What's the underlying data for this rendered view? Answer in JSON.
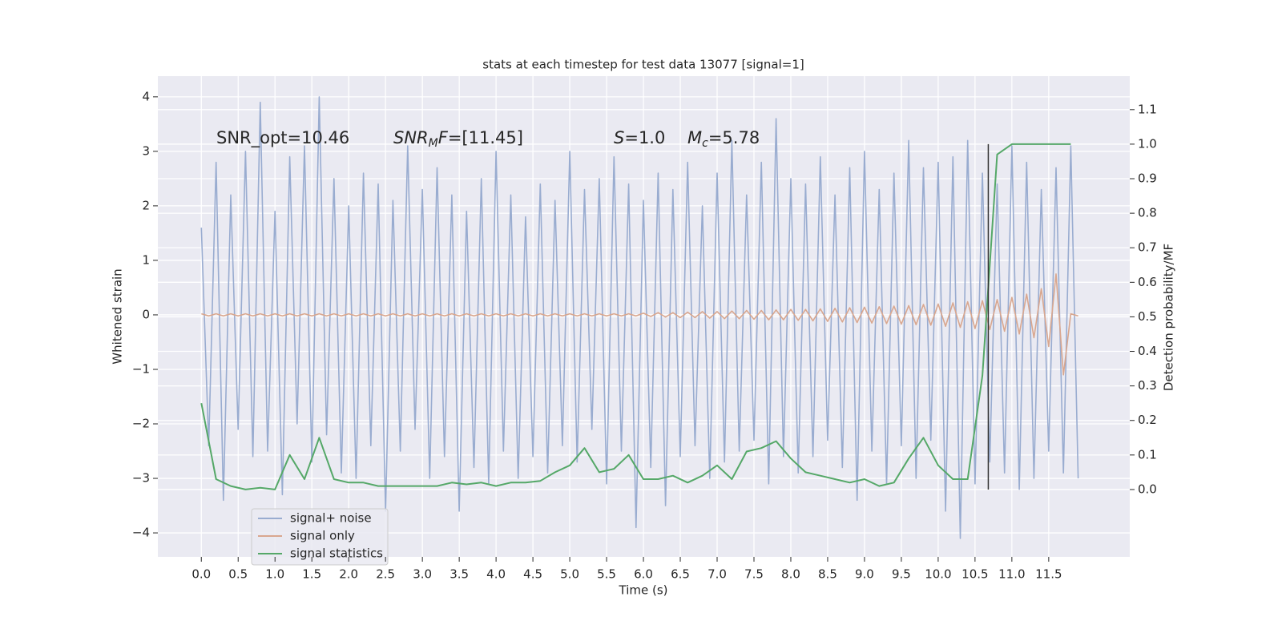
{
  "chart_data": {
    "type": "line",
    "title": "stats at each timestep for test data 13077 [signal=1]",
    "xlabel": "Time (s)",
    "ylabel": "Whitened strain",
    "y2label": "Detection probability/MF",
    "xlim": [
      -0.59,
      12.6
    ],
    "ylim": [
      -4.44,
      4.38
    ],
    "y2lim": [
      -0.195,
      1.197
    ],
    "xticks": [
      {
        "value": 0,
        "label": "0.0"
      },
      0.5,
      {
        "value": 1,
        "label": "1.0"
      },
      1.5,
      {
        "value": 2,
        "label": "2.0"
      },
      2.5,
      {
        "value": 3,
        "label": "3.0"
      },
      3.5,
      {
        "value": 4,
        "label": "4.0"
      },
      4.5,
      {
        "value": 5,
        "label": "5.0"
      },
      5.5,
      {
        "value": 6,
        "label": "6.0"
      },
      6.5,
      {
        "value": 7,
        "label": "7.0"
      },
      7.5,
      {
        "value": 8,
        "label": "8.0"
      },
      8.5,
      {
        "value": 9,
        "label": "9.0"
      },
      9.5,
      {
        "value": 10,
        "label": "10.0"
      },
      10.5,
      {
        "value": 11,
        "label": "11.0"
      },
      11.5
    ],
    "yticks": [
      {
        "value": -4,
        "label": "−4"
      },
      {
        "value": -3,
        "label": "−3"
      },
      {
        "value": -2,
        "label": "−2"
      },
      {
        "value": -1,
        "label": "−1"
      },
      0,
      1,
      2,
      3,
      4
    ],
    "y2ticks": [
      {
        "value": 0,
        "label": "0.0"
      },
      0.1,
      0.2,
      0.3,
      0.4,
      0.5,
      0.6,
      0.7,
      0.8,
      0.9,
      {
        "value": 1,
        "label": "1.0"
      },
      1.1
    ],
    "grid": true,
    "legend": "lower left",
    "x": [
      0,
      0.1,
      0.2,
      0.3,
      0.4,
      0.5,
      0.6,
      0.7,
      0.8,
      0.9,
      1,
      1.1,
      1.2,
      1.3,
      1.4,
      1.5,
      1.6,
      1.7,
      1.8,
      1.9,
      2,
      2.1,
      2.2,
      2.3,
      2.4,
      2.5,
      2.6,
      2.7,
      2.8,
      2.9,
      3,
      3.1,
      3.2,
      3.3,
      3.4,
      3.5,
      3.6,
      3.7,
      3.8,
      3.9,
      4,
      4.1,
      4.2,
      4.3,
      4.4,
      4.5,
      4.6,
      4.7,
      4.8,
      4.9,
      5,
      5.1,
      5.2,
      5.3,
      5.4,
      5.5,
      5.6,
      5.7,
      5.8,
      5.9,
      6,
      6.1,
      6.2,
      6.3,
      6.4,
      6.5,
      6.6,
      6.7,
      6.8,
      6.9,
      7,
      7.1,
      7.2,
      7.3,
      7.4,
      7.5,
      7.6,
      7.7,
      7.8,
      7.9,
      8,
      8.1,
      8.2,
      8.3,
      8.4,
      8.5,
      8.6,
      8.7,
      8.8,
      8.9,
      9,
      9.1,
      9.2,
      9.3,
      9.4,
      9.5,
      9.6,
      9.7,
      9.8,
      9.9,
      10,
      10.1,
      10.2,
      10.3,
      10.4,
      10.5,
      10.6,
      10.7,
      10.8,
      10.9,
      11,
      11.1,
      11.2,
      11.3,
      11.4,
      11.5,
      11.6,
      11.7,
      11.8,
      11.9
    ],
    "series": [
      {
        "name": "signal+ noise",
        "color": "#99acd0",
        "values": [
          1.6,
          -2.4,
          2.8,
          -3.4,
          2.2,
          -2.1,
          3.0,
          -2.6,
          3.9,
          -2.5,
          1.9,
          -3.3,
          2.9,
          -2.0,
          3.1,
          -2.7,
          4.0,
          -2.2,
          2.5,
          -2.9,
          2.0,
          -3.0,
          2.6,
          -2.4,
          2.4,
          -3.6,
          2.1,
          -2.5,
          3.1,
          -2.1,
          2.3,
          -3.0,
          2.7,
          -2.6,
          2.2,
          -3.6,
          1.9,
          -2.8,
          2.5,
          -3.1,
          3.0,
          -2.5,
          2.2,
          -3.0,
          1.8,
          -2.6,
          2.4,
          -2.9,
          2.1,
          -2.4,
          3.0,
          -2.7,
          2.3,
          -2.1,
          2.5,
          -3.1,
          2.9,
          -2.5,
          2.4,
          -3.9,
          2.1,
          -2.8,
          2.6,
          -3.5,
          2.3,
          -2.6,
          2.8,
          -2.4,
          2.0,
          -3.0,
          2.6,
          -2.7,
          3.2,
          -2.5,
          2.2,
          -2.3,
          2.8,
          -3.1,
          3.6,
          -2.6,
          2.5,
          -2.9,
          2.4,
          -2.6,
          2.9,
          -2.3,
          2.2,
          -2.8,
          2.7,
          -3.4,
          3.0,
          -2.5,
          2.3,
          -3.1,
          2.6,
          -2.4,
          3.2,
          -3.0,
          2.7,
          -2.3,
          2.8,
          -3.6,
          2.9,
          -4.1,
          3.2,
          -3.1,
          2.6,
          -2.7,
          2.4,
          -2.9,
          3.1,
          -3.2,
          2.8,
          -3.0,
          2.3,
          -2.5,
          2.7,
          -2.9,
          3.1,
          -3.0
        ]
      },
      {
        "name": "signal only",
        "color": "#d9a78f",
        "values": [
          0.02,
          -0.02,
          0.02,
          -0.02,
          0.02,
          -0.02,
          0.02,
          -0.02,
          0.02,
          -0.02,
          0.02,
          -0.02,
          0.02,
          -0.02,
          0.02,
          -0.02,
          0.02,
          -0.02,
          0.02,
          -0.02,
          0.02,
          -0.02,
          0.02,
          -0.02,
          0.02,
          -0.02,
          0.02,
          -0.02,
          0.02,
          -0.02,
          0.02,
          -0.02,
          0.02,
          -0.02,
          0.02,
          -0.02,
          0.02,
          -0.02,
          0.02,
          -0.02,
          0.02,
          -0.02,
          0.02,
          -0.02,
          0.02,
          -0.02,
          0.02,
          -0.02,
          0.02,
          -0.02,
          0.02,
          -0.02,
          0.02,
          -0.02,
          0.02,
          -0.02,
          0.02,
          -0.02,
          0.02,
          -0.02,
          0.03,
          -0.03,
          0.04,
          -0.04,
          0.04,
          -0.05,
          0.05,
          -0.05,
          0.06,
          -0.06,
          0.06,
          -0.07,
          0.07,
          -0.07,
          0.08,
          -0.08,
          0.08,
          -0.09,
          0.09,
          -0.09,
          0.1,
          -0.1,
          0.1,
          -0.11,
          0.11,
          -0.12,
          0.12,
          -0.13,
          0.13,
          -0.14,
          0.14,
          -0.15,
          0.15,
          -0.16,
          0.16,
          -0.17,
          0.17,
          -0.18,
          0.19,
          -0.19,
          0.2,
          -0.21,
          0.22,
          -0.23,
          0.24,
          -0.25,
          0.26,
          -0.27,
          0.28,
          -0.3,
          0.32,
          -0.35,
          0.38,
          -0.42,
          0.48,
          -0.58,
          0.75,
          -1.1,
          0.02,
          -0.02
        ]
      },
      {
        "name": "signal statistics",
        "color": "#55a868",
        "axis": "y2",
        "x": [
          0,
          0.2,
          0.4,
          0.6,
          0.8,
          1,
          1.2,
          1.4,
          1.6,
          1.8,
          2,
          2.2,
          2.4,
          2.6,
          2.8,
          3,
          3.2,
          3.4,
          3.6,
          3.8,
          4,
          4.2,
          4.4,
          4.6,
          4.8,
          5,
          5.2,
          5.4,
          5.6,
          5.8,
          6,
          6.2,
          6.4,
          6.6,
          6.8,
          7,
          7.2,
          7.4,
          7.6,
          7.8,
          8,
          8.2,
          8.4,
          8.6,
          8.8,
          9,
          9.2,
          9.4,
          9.6,
          9.8,
          10,
          10.2,
          10.4,
          10.6,
          10.8,
          11,
          11.2,
          11.4,
          11.6,
          11.8
        ],
        "values": [
          0.25,
          0.03,
          0.01,
          0.0,
          0.005,
          0.0,
          0.1,
          0.03,
          0.15,
          0.03,
          0.02,
          0.02,
          0.01,
          0.01,
          0.01,
          0.01,
          0.01,
          0.02,
          0.015,
          0.02,
          0.01,
          0.02,
          0.02,
          0.025,
          0.05,
          0.07,
          0.12,
          0.05,
          0.06,
          0.1,
          0.03,
          0.03,
          0.04,
          0.02,
          0.04,
          0.07,
          0.03,
          0.11,
          0.12,
          0.14,
          0.09,
          0.05,
          0.04,
          0.03,
          0.02,
          0.03,
          0.01,
          0.02,
          0.09,
          0.15,
          0.07,
          0.03,
          0.03,
          0.33,
          0.97,
          1.0,
          1.0,
          1.0,
          1.0,
          1.0
        ]
      }
    ],
    "vline": {
      "x": 10.68,
      "y2": [
        0,
        1
      ],
      "color": "#333333"
    },
    "annotations": [
      [
        {
          "text": "SNR_opt=10.46",
          "style": "normal"
        }
      ],
      [
        {
          "text": "SNR",
          "style": "italic"
        },
        {
          "text": "M",
          "style": "sub"
        },
        {
          "text": "F",
          "style": "italic"
        },
        {
          "text": "=[11.45]",
          "style": "normal"
        }
      ],
      [
        {
          "text": "S",
          "style": "italic"
        },
        {
          "text": "=1.0",
          "style": "normal"
        }
      ],
      [
        {
          "text": "M",
          "style": "italic"
        },
        {
          "text": "c",
          "style": "sub"
        },
        {
          "text": "=5.78",
          "style": "normal"
        }
      ]
    ]
  }
}
